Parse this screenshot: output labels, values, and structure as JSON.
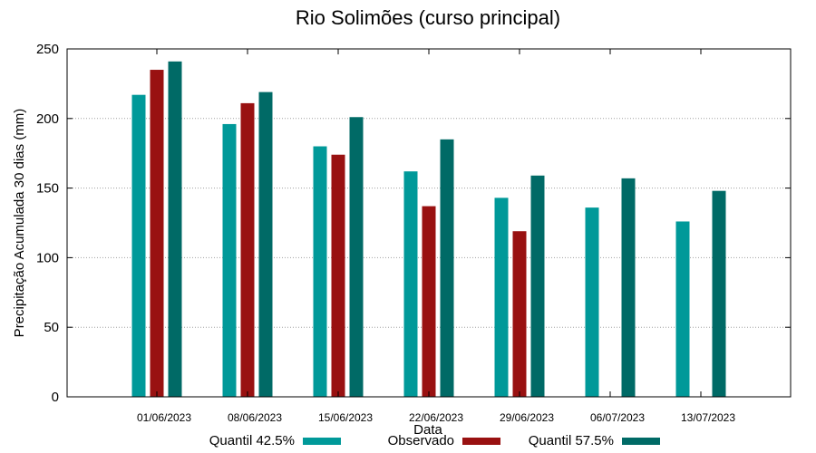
{
  "chart_data": {
    "type": "bar",
    "title": "Rio Solimões (curso principal)",
    "xlabel": "Data",
    "ylabel": "Precipitação Acumulada 30 dias (mm)",
    "ylim": [
      0,
      250
    ],
    "yticks": [
      0,
      50,
      100,
      150,
      200,
      250
    ],
    "grid": "y-dotted",
    "legend_position": "bottom",
    "categories": [
      "01/06/2023",
      "08/06/2023",
      "15/06/2023",
      "22/06/2023",
      "29/06/2023",
      "06/07/2023",
      "13/07/2023"
    ],
    "series": [
      {
        "name": "Quantil 42.5%",
        "color": "#009999",
        "values": [
          217,
          196,
          180,
          162,
          143,
          136,
          126
        ]
      },
      {
        "name": "Observado",
        "color": "#991111",
        "values": [
          235,
          211,
          174,
          137,
          119,
          null,
          null
        ]
      },
      {
        "name": "Quantil 57.5%",
        "color": "#006a66",
        "values": [
          241,
          219,
          201,
          185,
          159,
          157,
          148
        ]
      }
    ]
  }
}
